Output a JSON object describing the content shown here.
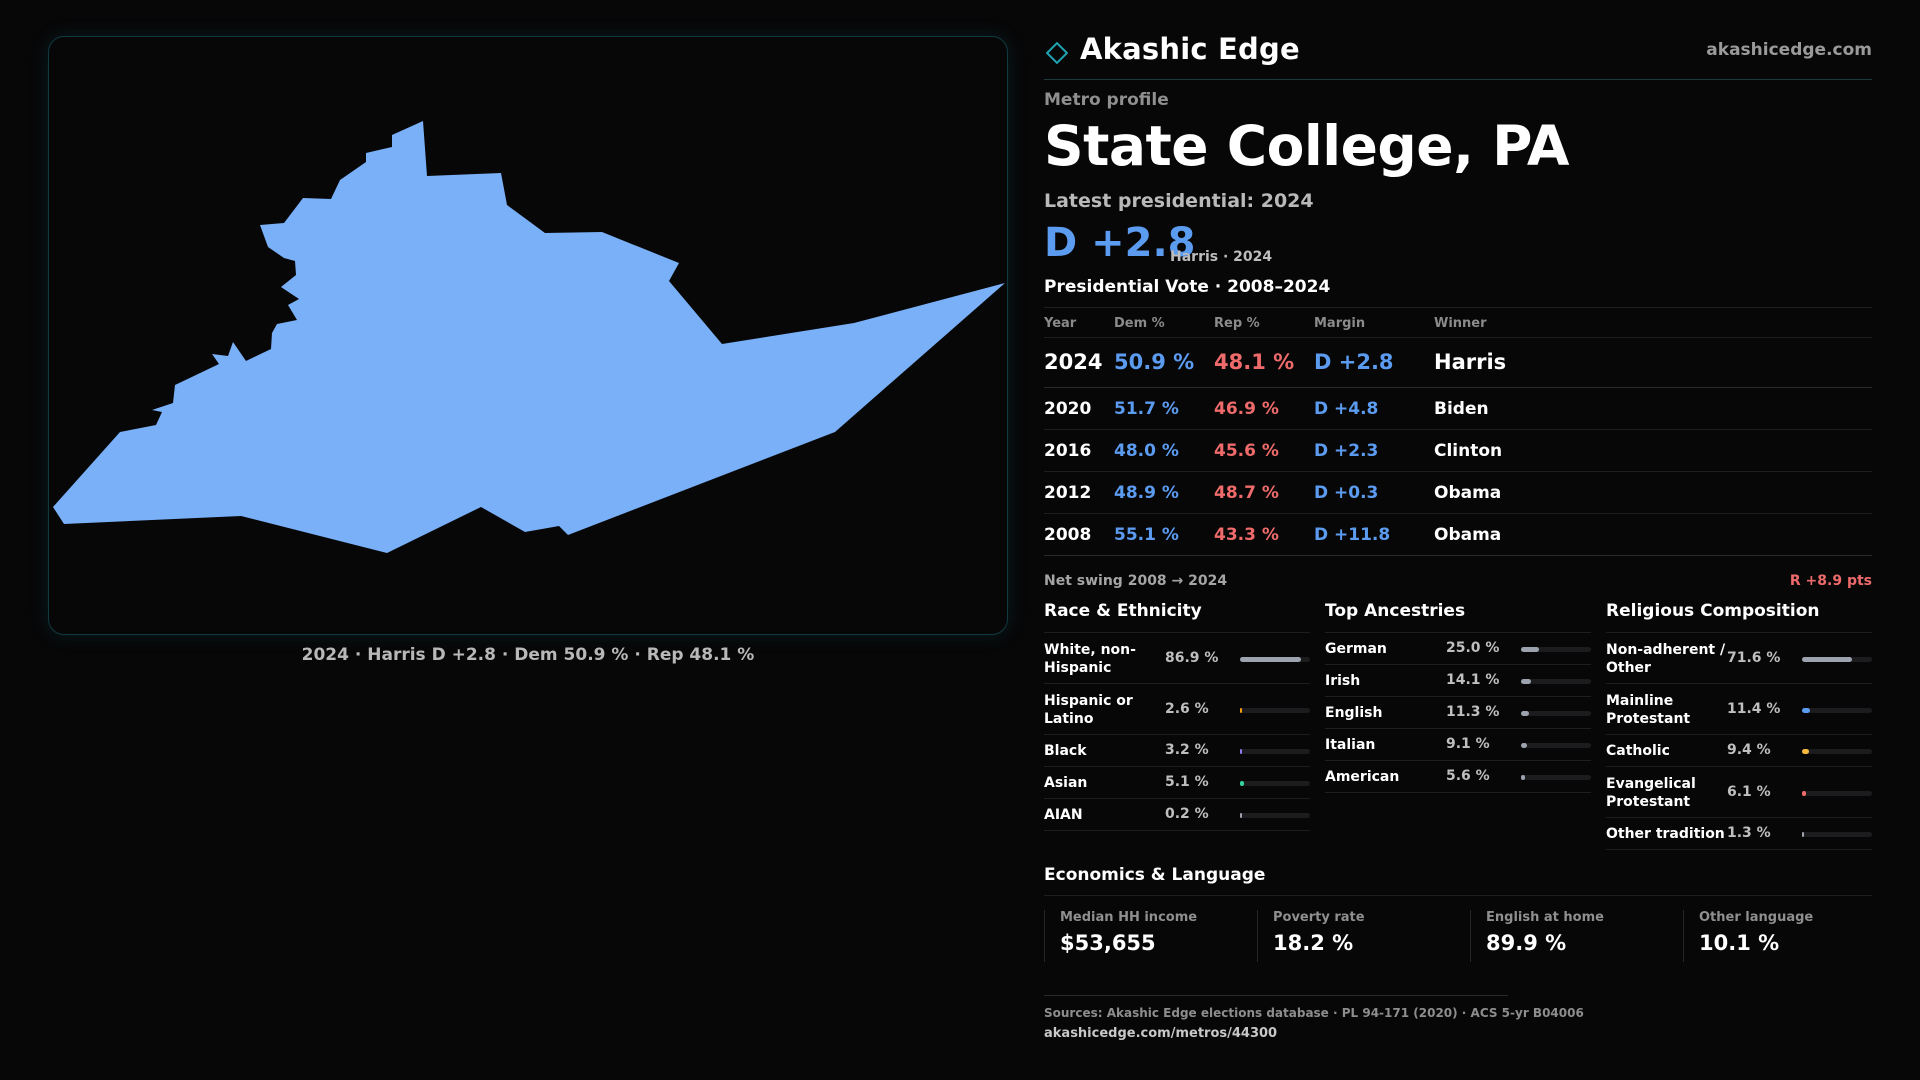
{
  "brand": {
    "name": "Akashic Edge",
    "site": "akashicedge.com"
  },
  "profile": {
    "kicker": "Metro profile",
    "title": "State College, PA",
    "latest_label": "Latest presidential: 2024",
    "big_margin": "D +2.8",
    "big_sub": "Harris · 2024"
  },
  "map": {
    "caption": "2024 · Harris D +2.8 · Dem 50.9 % · Rep 48.1 %",
    "fill_color": "#79b0f8"
  },
  "vote_table": {
    "title": "Presidential Vote · 2008–2024",
    "headers": {
      "year": "Year",
      "dem": "Dem %",
      "rep": "Rep %",
      "margin": "Margin",
      "winner": "Winner"
    },
    "rows": [
      {
        "year": "2024",
        "dem": "50.9 %",
        "rep": "48.1 %",
        "margin": "D +2.8",
        "winner": "Harris"
      },
      {
        "year": "2020",
        "dem": "51.7 %",
        "rep": "46.9 %",
        "margin": "D +4.8",
        "winner": "Biden"
      },
      {
        "year": "2016",
        "dem": "48.0 %",
        "rep": "45.6 %",
        "margin": "D +2.3",
        "winner": "Clinton"
      },
      {
        "year": "2012",
        "dem": "48.9 %",
        "rep": "48.7 %",
        "margin": "D +0.3",
        "winner": "Obama"
      },
      {
        "year": "2008",
        "dem": "55.1 %",
        "rep": "43.3 %",
        "margin": "D +11.8",
        "winner": "Obama"
      }
    ]
  },
  "swing": {
    "label": "Net swing 2008 → 2024",
    "value": "R +8.9 pts"
  },
  "race": {
    "title": "Race & Ethnicity",
    "rows": [
      {
        "label": "White, non-Hispanic",
        "pct": "86.9 %",
        "value": 86.9,
        "color": "#9ca3af"
      },
      {
        "label": "Hispanic or Latino",
        "pct": "2.6 %",
        "value": 2.6,
        "color": "#f59e0b"
      },
      {
        "label": "Black",
        "pct": "3.2 %",
        "value": 3.2,
        "color": "#8b7cf0"
      },
      {
        "label": "Asian",
        "pct": "5.1 %",
        "value": 5.1,
        "color": "#34d399"
      },
      {
        "label": "AIAN",
        "pct": "0.2 %",
        "value": 0.2,
        "color": "#9ca3af"
      }
    ]
  },
  "ancestry": {
    "title": "Top Ancestries",
    "rows": [
      {
        "label": "German",
        "pct": "25.0 %",
        "value": 25.0,
        "color": "#9ca3af"
      },
      {
        "label": "Irish",
        "pct": "14.1 %",
        "value": 14.1,
        "color": "#9ca3af"
      },
      {
        "label": "English",
        "pct": "11.3 %",
        "value": 11.3,
        "color": "#9ca3af"
      },
      {
        "label": "Italian",
        "pct": "9.1 %",
        "value": 9.1,
        "color": "#9ca3af"
      },
      {
        "label": "American",
        "pct": "5.6 %",
        "value": 5.6,
        "color": "#9ca3af"
      }
    ]
  },
  "religion": {
    "title": "Religious Composition",
    "rows": [
      {
        "label": "Non-adherent / Other",
        "pct": "71.6 %",
        "value": 71.6,
        "color": "#9ca3af"
      },
      {
        "label": "Mainline Protestant",
        "pct": "11.4 %",
        "value": 11.4,
        "color": "#5b9bf0"
      },
      {
        "label": "Catholic",
        "pct": "9.4 %",
        "value": 9.4,
        "color": "#f5b83d"
      },
      {
        "label": "Evangelical Protestant",
        "pct": "6.1 %",
        "value": 6.1,
        "color": "#ef6b6b"
      },
      {
        "label": "Other tradition",
        "pct": "1.3 %",
        "value": 1.3,
        "color": "#9ca3af"
      }
    ]
  },
  "economics": {
    "title": "Economics & Language",
    "cells": [
      {
        "label": "Median HH income",
        "value": "$53,655"
      },
      {
        "label": "Poverty rate",
        "value": "18.2 %"
      },
      {
        "label": "English at home",
        "value": "89.9 %"
      },
      {
        "label": "Other language",
        "value": "10.1 %"
      }
    ]
  },
  "footer": {
    "sources": "Sources: Akashic Edge elections database · PL 94-171 (2020) · ACS 5-yr B04006",
    "url": "akashicedge.com/metros/44300"
  },
  "colors": {
    "dem": "#5b9bf0",
    "rep": "#ef6b6b",
    "accent": "#1fa3b0"
  }
}
